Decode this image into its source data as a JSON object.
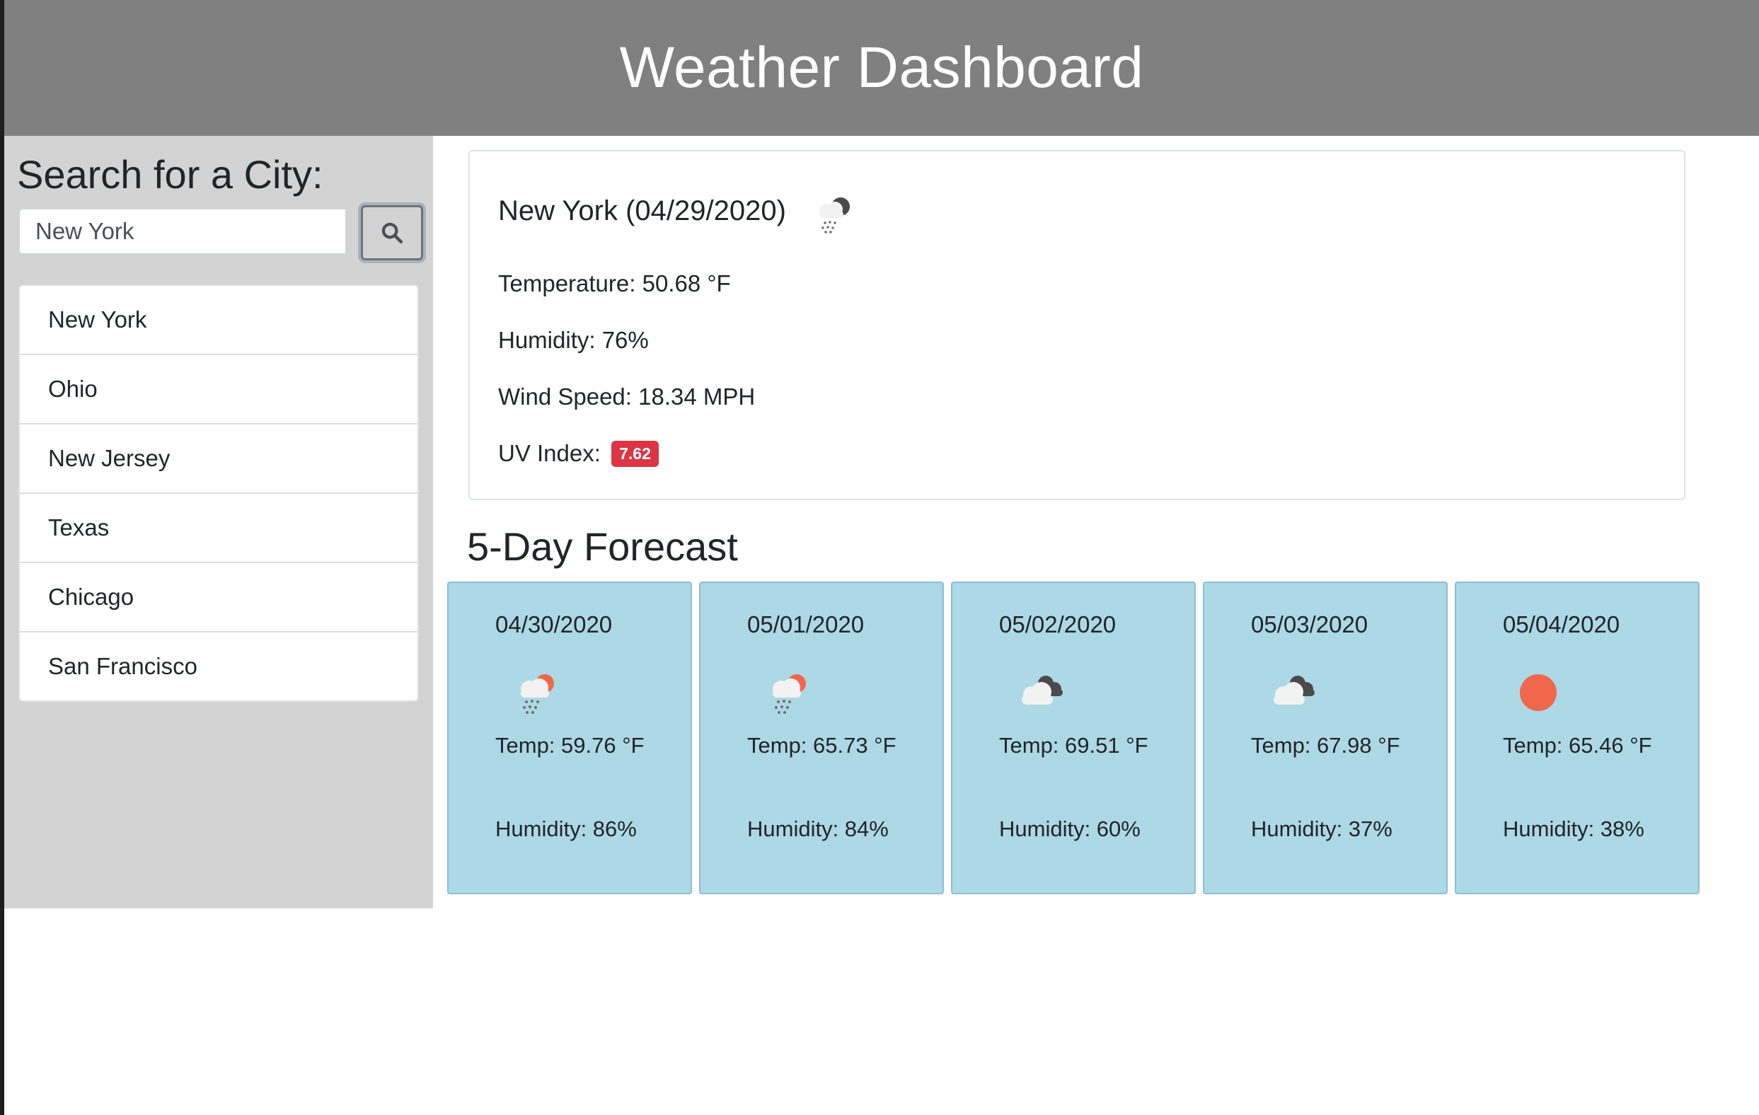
{
  "header": {
    "title": "Weather Dashboard"
  },
  "sidebar": {
    "title": "Search for a City:",
    "search": {
      "value": "New York",
      "placeholder": "",
      "button_icon": "search-icon"
    },
    "cities": [
      "New York",
      "Ohio",
      "New Jersey",
      "Texas",
      "Chicago",
      "San Francisco"
    ]
  },
  "current": {
    "title": "New York (04/29/2020)",
    "icon": "light-rain-night-icon",
    "temperature": "Temperature: 50.68 °F",
    "humidity": "Humidity: 76%",
    "wind": "Wind Speed: 18.34 MPH",
    "uv_label": "UV Index:",
    "uv_value": "7.62",
    "uv_color": "#dc3545"
  },
  "forecast": {
    "title": "5-Day Forecast",
    "days": [
      {
        "date": "04/30/2020",
        "icon": "light-rain-day-icon",
        "temp": "Temp: 59.76 °F",
        "humidity": "Humidity: 86%"
      },
      {
        "date": "05/01/2020",
        "icon": "light-rain-day-icon",
        "temp": "Temp: 65.73 °F",
        "humidity": "Humidity: 84%"
      },
      {
        "date": "05/02/2020",
        "icon": "broken-clouds-icon",
        "temp": "Temp: 69.51 °F",
        "humidity": "Humidity: 60%"
      },
      {
        "date": "05/03/2020",
        "icon": "broken-clouds-icon",
        "temp": "Temp: 67.98 °F",
        "humidity": "Humidity: 37%"
      },
      {
        "date": "05/04/2020",
        "icon": "clear-sky-sun-icon",
        "temp": "Temp: 65.46 °F",
        "humidity": "Humidity: 38%"
      }
    ]
  },
  "colors": {
    "header_bg": "#808080",
    "sidebar_bg": "#d3d3d3",
    "card_bg": "#add8e6",
    "sun": "#f0674b"
  }
}
